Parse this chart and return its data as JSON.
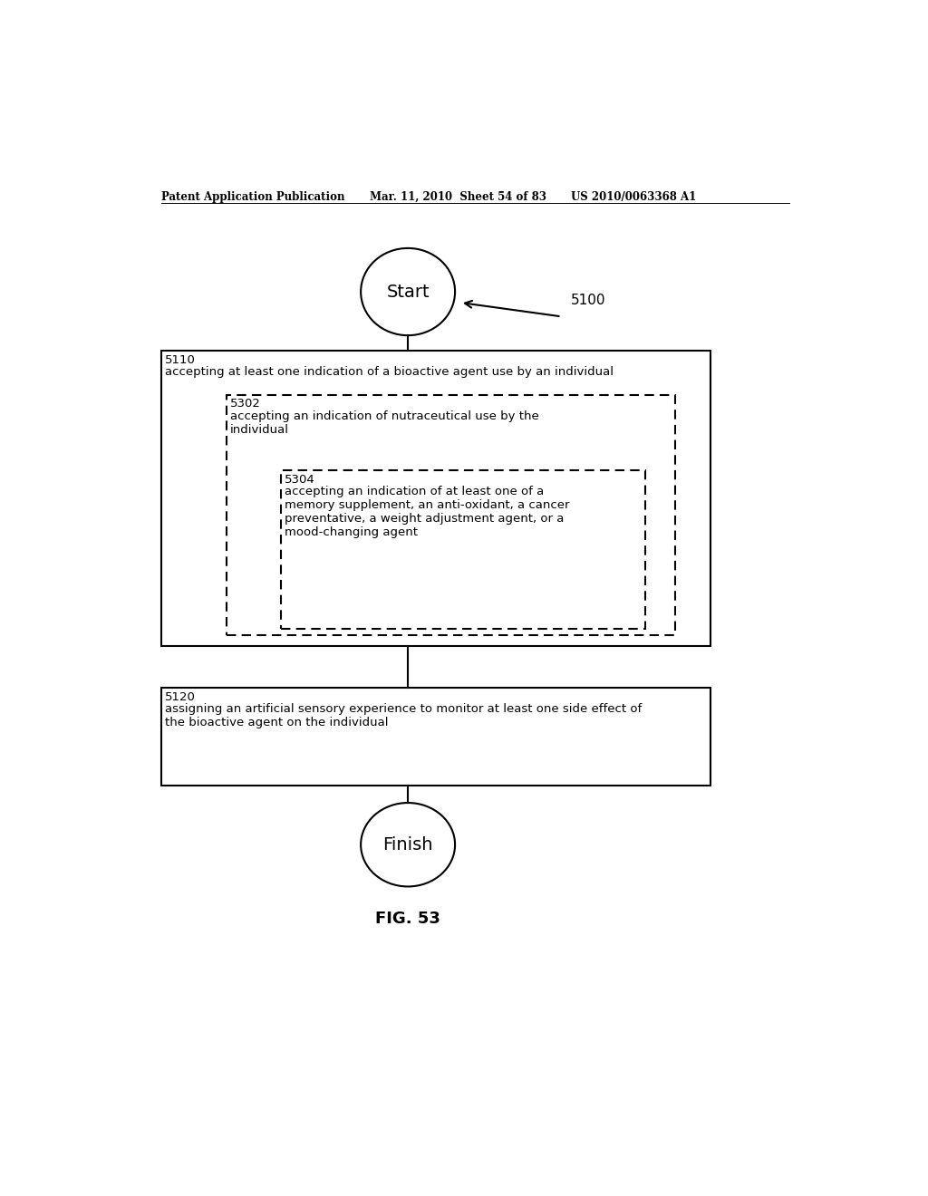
{
  "header_left": "Patent Application Publication",
  "header_mid": "Mar. 11, 2010  Sheet 54 of 83",
  "header_right": "US 2010/0063368 A1",
  "fig_label": "FIG. 53",
  "label_5100": "5100",
  "start_text": "Start",
  "finish_text": "Finish",
  "box5110_id": "5110",
  "box5110_text": "accepting at least one indication of a bioactive agent use by an individual",
  "box5302_id": "5302",
  "box5302_text": "accepting an indication of nutraceutical use by the\nindividual",
  "box5304_id": "5304",
  "box5304_text": "accepting an indication of at least one of a\nmemory supplement, an anti-oxidant, a cancer\npreventative, a weight adjustment agent, or a\nmood-changing agent",
  "box5120_id": "5120",
  "box5120_text": "assigning an artificial sensory experience to monitor at least one side effect of\nthe bioactive agent on the individual",
  "bg_color": "#ffffff",
  "text_color": "#000000",
  "line_color": "#000000"
}
